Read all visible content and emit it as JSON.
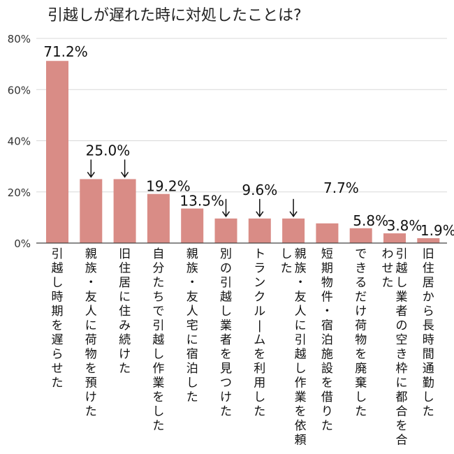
{
  "chart_data": {
    "type": "bar",
    "title": "引越しが遅れた時に対処したことは?",
    "xlabel": "",
    "ylabel": "",
    "ylim": [
      0,
      80
    ],
    "yticks": [
      "0%",
      "20%",
      "40%",
      "60%",
      "80%"
    ],
    "grid": true,
    "bar_color": "#d98c86",
    "categories": [
      "引越し時期を遅らせた",
      "親族・友人に荷物を預けた",
      "旧住居に住み続けた",
      "自分たちで引越し作業をした",
      "親族・友人宅に宿泊した",
      "別の引越し業者を見つけた",
      "トランクルームを利用した",
      "親族・友人に引越し作業を依頼した",
      "短期物件・宿泊施設を借りた",
      "できるだけ荷物を廃棄した",
      "引越し業者の空き枠に都合を合わせた",
      "旧住居から長時間通勤した"
    ],
    "values": [
      71.2,
      25.0,
      25.0,
      19.2,
      13.5,
      9.6,
      9.6,
      9.6,
      7.7,
      5.8,
      3.8,
      1.9
    ],
    "data_labels": [
      {
        "text": "71.2%",
        "bars": [
          0
        ]
      },
      {
        "text": "25.0%",
        "bars": [
          1,
          2
        ]
      },
      {
        "text": "19.2%",
        "bars": [
          3
        ]
      },
      {
        "text": "13.5%",
        "bars": [
          4
        ]
      },
      {
        "text": "9.6%",
        "bars": [
          5,
          6,
          7
        ]
      },
      {
        "text": "7.7%",
        "bars": [
          8
        ]
      },
      {
        "text": "5.8%",
        "bars": [
          9
        ]
      },
      {
        "text": "3.8%",
        "bars": [
          10
        ]
      },
      {
        "text": "1.9%",
        "bars": [
          11
        ]
      }
    ]
  }
}
